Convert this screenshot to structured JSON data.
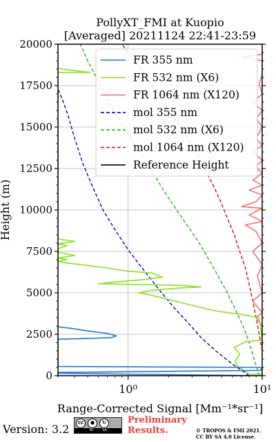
{
  "chart_data": {
    "type": "line",
    "title": "PollyXT_FMI at Kuopio",
    "subtitle": "[Averaged] 20211124 22:41-23:59",
    "xlabel": "Range-Corrected Signal [Mm⁻¹*sr⁻¹]",
    "ylabel": "Height (m)",
    "xscale": "log",
    "xlim": [
      0.3,
      10
    ],
    "ylim": [
      0,
      20000
    ],
    "grid": true,
    "legend_position": "upper center",
    "x_tick_labels": [
      "10⁰",
      "10¹"
    ],
    "x_tick_values": [
      1,
      10
    ],
    "y_ticks": [
      0,
      2500,
      5000,
      7500,
      10000,
      12500,
      15000,
      17500,
      20000
    ],
    "y_tick_labels": [
      "0",
      "2500",
      "5000",
      "7500",
      "10000",
      "12500",
      "15000",
      "17500",
      "20000"
    ],
    "series": [
      {
        "name": "FR 355 nm",
        "color": "#1f77d4",
        "style": "solid",
        "points": [
          [
            9.5,
            0
          ],
          [
            0.3,
            150
          ],
          [
            0.3,
            200
          ],
          [
            9.8,
            320
          ],
          [
            9.8,
            500
          ],
          [
            0.3,
            560
          ],
          [
            0.3,
            2200
          ],
          [
            0.52,
            2250
          ],
          [
            0.75,
            2300
          ],
          [
            0.82,
            2400
          ],
          [
            0.7,
            2550
          ],
          [
            0.5,
            2700
          ],
          [
            0.38,
            2850
          ],
          [
            0.3,
            2950
          ]
        ]
      },
      {
        "name": "FR 532 nm (X6)",
        "color": "#88e01e",
        "style": "solid",
        "points": [
          [
            10,
            100
          ],
          [
            8,
            100
          ],
          [
            6.5,
            600
          ],
          [
            6.3,
            900
          ],
          [
            6.8,
            1300
          ],
          [
            6.2,
            1700
          ],
          [
            7.5,
            2050
          ],
          [
            10,
            2150
          ],
          [
            9.5,
            3500
          ],
          [
            7,
            3700
          ],
          [
            5,
            3850
          ],
          [
            4,
            4000
          ],
          [
            3,
            4250
          ],
          [
            2.5,
            4400
          ],
          [
            2,
            4600
          ],
          [
            1.8,
            4700
          ],
          [
            1.5,
            4850
          ],
          [
            1.2,
            5000
          ],
          [
            1.5,
            5150
          ],
          [
            2.5,
            5300
          ],
          [
            3.5,
            5350
          ],
          [
            2.5,
            5450
          ],
          [
            1.2,
            5500
          ],
          [
            0.6,
            5550
          ],
          [
            0.8,
            5650
          ],
          [
            1.3,
            5800
          ],
          [
            1.8,
            5950
          ],
          [
            1.5,
            6200
          ],
          [
            1,
            6300
          ],
          [
            0.7,
            6500
          ],
          [
            0.55,
            6600
          ],
          [
            0.45,
            6700
          ],
          [
            0.35,
            6800
          ],
          [
            0.3,
            6900
          ],
          [
            0.35,
            7000
          ],
          [
            0.33,
            7050
          ],
          [
            0.3,
            7100
          ],
          [
            0.4,
            7250
          ],
          [
            0.35,
            7350
          ],
          [
            0.3,
            7450
          ],
          [
            0.3,
            7650
          ],
          [
            0.35,
            7850
          ],
          [
            0.3,
            7950
          ],
          [
            0.4,
            8100
          ],
          [
            0.3,
            8250
          ],
          [
            0.3,
            17900
          ],
          [
            0.3,
            18300
          ],
          [
            0.52,
            18300
          ],
          [
            0.32,
            18500
          ],
          [
            0.3,
            18550
          ]
        ]
      },
      {
        "name": "FR 1064 nm (X120)",
        "color": "#f36f6f",
        "style": "solid",
        "points": [
          [
            10,
            1000
          ],
          [
            10,
            3000
          ],
          [
            9,
            3500
          ],
          [
            10,
            3800
          ],
          [
            8.5,
            4500
          ],
          [
            10,
            5000
          ],
          [
            9.2,
            6000
          ],
          [
            10,
            6700
          ],
          [
            8.5,
            7500
          ],
          [
            10,
            8000
          ],
          [
            9,
            8700
          ],
          [
            7.5,
            9100
          ],
          [
            10,
            9300
          ],
          [
            8,
            9700
          ],
          [
            10,
            10100
          ],
          [
            7,
            10200
          ],
          [
            9,
            10500
          ],
          [
            10,
            10900
          ],
          [
            8,
            11200
          ],
          [
            10,
            11500
          ],
          [
            8.5,
            11800
          ],
          [
            10,
            12200
          ],
          [
            9,
            12600
          ],
          [
            10,
            13000
          ],
          [
            8.5,
            13500
          ],
          [
            10,
            13900
          ],
          [
            9,
            14300
          ],
          [
            10,
            15000
          ],
          [
            9,
            15500
          ],
          [
            10,
            16000
          ],
          [
            8.5,
            16500
          ],
          [
            10,
            17000
          ],
          [
            9.5,
            17600
          ],
          [
            10,
            18200
          ],
          [
            10,
            19000
          ],
          [
            7,
            19200
          ],
          [
            10,
            19400
          ],
          [
            10,
            20000
          ]
        ]
      },
      {
        "name": "mol 355 nm",
        "color": "#0000cc",
        "style": "dashed",
        "points": [
          [
            8.0,
            0
          ],
          [
            6.0,
            700
          ],
          [
            4.5,
            1500
          ],
          [
            3.5,
            2300
          ],
          [
            2.8,
            3200
          ],
          [
            2.2,
            4100
          ],
          [
            1.7,
            5200
          ],
          [
            1.3,
            6400
          ],
          [
            1.0,
            7600
          ],
          [
            0.8,
            8800
          ],
          [
            0.65,
            10000
          ],
          [
            0.55,
            11300
          ],
          [
            0.46,
            12800
          ],
          [
            0.4,
            14300
          ],
          [
            0.36,
            15600
          ],
          [
            0.33,
            16500
          ],
          [
            0.3,
            17300
          ]
        ]
      },
      {
        "name": "mol 532 nm (X6)",
        "color": "#1db41d",
        "style": "dashed",
        "points": [
          [
            9.5,
            0
          ],
          [
            8.7,
            1000
          ],
          [
            8.0,
            2000
          ],
          [
            7.2,
            3000
          ],
          [
            6.3,
            4000
          ],
          [
            5.5,
            5000
          ],
          [
            4.7,
            6000
          ],
          [
            4.0,
            7000
          ],
          [
            3.4,
            8000
          ],
          [
            2.8,
            9000
          ],
          [
            2.3,
            10000
          ],
          [
            1.9,
            11000
          ],
          [
            1.6,
            12000
          ],
          [
            1.35,
            13000
          ],
          [
            1.1,
            14000
          ],
          [
            0.93,
            15000
          ],
          [
            0.78,
            16000
          ],
          [
            0.67,
            17000
          ],
          [
            0.58,
            18000
          ],
          [
            0.5,
            19000
          ],
          [
            0.44,
            20000
          ]
        ]
      },
      {
        "name": "mol 1064 nm (X120)",
        "color": "#dd0000",
        "style": "dashed",
        "points": [
          [
            10,
            1500
          ],
          [
            9.5,
            2500
          ],
          [
            9,
            3500
          ],
          [
            8.5,
            4500
          ],
          [
            8,
            5500
          ],
          [
            7.5,
            6500
          ],
          [
            6.8,
            7500
          ],
          [
            6.2,
            8500
          ],
          [
            5.5,
            9500
          ],
          [
            4.9,
            10500
          ],
          [
            4.3,
            11500
          ],
          [
            3.7,
            12500
          ],
          [
            3.2,
            13500
          ],
          [
            2.7,
            14500
          ],
          [
            2.25,
            15500
          ],
          [
            1.85,
            16500
          ],
          [
            1.5,
            17500
          ],
          [
            1.25,
            18500
          ],
          [
            1.0,
            19500
          ],
          [
            0.9,
            20000
          ]
        ]
      },
      {
        "name": "Reference Height",
        "color": "#000000",
        "style": "solid",
        "points": []
      }
    ]
  },
  "footer": {
    "version": "Version: 3.2",
    "cc_label_by": "BY",
    "cc_label_sa": "SA",
    "preliminary_line1": "Preliminary",
    "preliminary_line2": "Results.",
    "copyright_line1": "© TROPOS & FMI 2021.",
    "copyright_line2": "CC BY SA 4.0 License."
  }
}
